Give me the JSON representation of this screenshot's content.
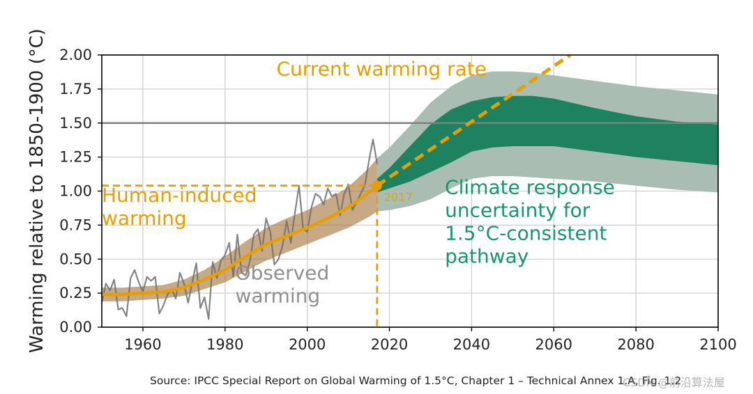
{
  "chart_data": {
    "type": "line",
    "title": "",
    "source_note": "Source: IPCC Special Report on Global Warming of 1.5°C, Chapter 1 – Technical Annex 1.A, Fig. 1.2",
    "watermark": "CSDN @前沿算法屋",
    "ylabel": "Warming relative to 1850-1900 (°C)",
    "xlabel": "",
    "xlim": [
      1950,
      2100
    ],
    "ylim": [
      0.0,
      2.0
    ],
    "x_ticks": [
      1960,
      1980,
      2000,
      2020,
      2040,
      2060,
      2080,
      2100
    ],
    "x_tick_labels": [
      "1960",
      "1980",
      "2000",
      "2020",
      "2040",
      "2060",
      "2080",
      "2100"
    ],
    "y_ticks": [
      0.0,
      0.25,
      0.5,
      0.75,
      1.0,
      1.25,
      1.5,
      1.75,
      2.0
    ],
    "y_tick_labels": [
      "0.00",
      "0.25",
      "0.50",
      "0.75",
      "1.00",
      "1.25",
      "1.50",
      "1.75",
      "2.00"
    ],
    "grid": true,
    "reference_line": {
      "y": 1.5,
      "color": "#808080"
    },
    "colors": {
      "human": "#e69f00",
      "human_band": "#a4753a",
      "observed": "#6e6e6e",
      "pathway_outer": "#a9bdb3",
      "pathway_inner": "#1e8160",
      "annotation_green": "#1a9471",
      "annotation_gray": "#8f8f8f"
    },
    "series": [
      {
        "name": "Observed warming",
        "kind": "line",
        "x": [
          1950,
          1951,
          1952,
          1953,
          1954,
          1955,
          1956,
          1957,
          1958,
          1959,
          1960,
          1961,
          1962,
          1963,
          1964,
          1965,
          1966,
          1967,
          1968,
          1969,
          1970,
          1971,
          1972,
          1973,
          1974,
          1975,
          1976,
          1977,
          1978,
          1979,
          1980,
          1981,
          1982,
          1983,
          1984,
          1985,
          1986,
          1987,
          1988,
          1989,
          1990,
          1991,
          1992,
          1993,
          1994,
          1995,
          1996,
          1997,
          1998,
          1999,
          2000,
          2001,
          2002,
          2003,
          2004,
          2005,
          2006,
          2007,
          2008,
          2009,
          2010,
          2011,
          2012,
          2013,
          2014,
          2015,
          2016,
          2017
        ],
        "y": [
          0.18,
          0.32,
          0.27,
          0.35,
          0.13,
          0.14,
          0.08,
          0.36,
          0.42,
          0.33,
          0.26,
          0.37,
          0.34,
          0.37,
          0.1,
          0.16,
          0.24,
          0.28,
          0.21,
          0.4,
          0.32,
          0.18,
          0.33,
          0.47,
          0.14,
          0.22,
          0.06,
          0.48,
          0.36,
          0.49,
          0.53,
          0.62,
          0.37,
          0.68,
          0.4,
          0.38,
          0.48,
          0.68,
          0.72,
          0.56,
          0.8,
          0.7,
          0.46,
          0.5,
          0.6,
          0.78,
          0.62,
          0.84,
          1.04,
          0.72,
          0.7,
          0.88,
          0.98,
          0.96,
          0.9,
          1.02,
          0.96,
          0.98,
          0.82,
          0.98,
          1.05,
          0.86,
          0.92,
          0.98,
          1.04,
          1.22,
          1.38,
          1.2
        ]
      },
      {
        "name": "Human-induced warming",
        "kind": "line",
        "x": [
          1950,
          1955,
          1960,
          1965,
          1970,
          1975,
          1980,
          1985,
          1990,
          1995,
          2000,
          2005,
          2010,
          2015,
          2017
        ],
        "y": [
          0.24,
          0.24,
          0.25,
          0.26,
          0.29,
          0.35,
          0.42,
          0.52,
          0.61,
          0.67,
          0.73,
          0.8,
          0.88,
          0.99,
          1.04
        ]
      },
      {
        "name": "Human-induced warming range",
        "kind": "band",
        "x": [
          1950,
          1955,
          1960,
          1965,
          1970,
          1975,
          1980,
          1985,
          1990,
          1995,
          2000,
          2005,
          2010,
          2015,
          2017
        ],
        "lower": [
          0.19,
          0.19,
          0.2,
          0.21,
          0.23,
          0.28,
          0.33,
          0.41,
          0.49,
          0.55,
          0.61,
          0.67,
          0.73,
          0.81,
          0.85
        ],
        "upper": [
          0.29,
          0.29,
          0.3,
          0.31,
          0.35,
          0.42,
          0.52,
          0.63,
          0.73,
          0.8,
          0.86,
          0.94,
          1.03,
          1.17,
          1.24
        ]
      },
      {
        "name": "Climate response uncertainty (outer)",
        "kind": "band",
        "x": [
          2017,
          2020,
          2025,
          2030,
          2035,
          2040,
          2045,
          2050,
          2055,
          2060,
          2070,
          2080,
          2090,
          2100
        ],
        "lower": [
          0.85,
          0.86,
          0.89,
          0.94,
          1.02,
          1.09,
          1.11,
          1.11,
          1.1,
          1.09,
          1.07,
          1.04,
          1.01,
          0.99
        ],
        "upper": [
          1.24,
          1.32,
          1.48,
          1.65,
          1.77,
          1.85,
          1.88,
          1.88,
          1.87,
          1.85,
          1.81,
          1.77,
          1.74,
          1.71
        ]
      },
      {
        "name": "Climate response uncertainty (inner)",
        "kind": "band",
        "x": [
          2017,
          2020,
          2025,
          2030,
          2035,
          2040,
          2045,
          2050,
          2055,
          2060,
          2070,
          2080,
          2090,
          2100
        ],
        "lower": [
          0.99,
          1.02,
          1.07,
          1.14,
          1.21,
          1.29,
          1.32,
          1.33,
          1.33,
          1.33,
          1.29,
          1.25,
          1.22,
          1.19
        ],
        "upper": [
          1.09,
          1.17,
          1.33,
          1.49,
          1.6,
          1.66,
          1.69,
          1.7,
          1.7,
          1.68,
          1.61,
          1.55,
          1.51,
          1.49
        ]
      },
      {
        "name": "Current warming rate",
        "kind": "dashed-line",
        "x": [
          2017,
          2064
        ],
        "y": [
          1.04,
          2.0
        ]
      }
    ],
    "marker": {
      "x": 2017,
      "y": 1.04,
      "label": "2017"
    },
    "guide_lines": {
      "x": 2017,
      "y": 1.04
    },
    "annotations": [
      {
        "id": "current-rate",
        "lines": [
          "Current warming rate"
        ],
        "x": 1992.5,
        "y": 1.85,
        "color_key": "human"
      },
      {
        "id": "human-induced",
        "lines": [
          "Human-induced",
          "warming"
        ],
        "x": 1950.0,
        "y": 0.92,
        "color_key": "human"
      },
      {
        "id": "observed",
        "lines": [
          "Observed",
          "warming"
        ],
        "x": 1982.5,
        "y": 0.35,
        "color_key": "annotation_gray"
      },
      {
        "id": "climate-response",
        "lines": [
          "Climate response",
          "uncertainty for",
          "1.5°C-consistent",
          "pathway"
        ],
        "x": 2033.5,
        "y": 0.98,
        "color_key": "annotation_green"
      }
    ]
  }
}
